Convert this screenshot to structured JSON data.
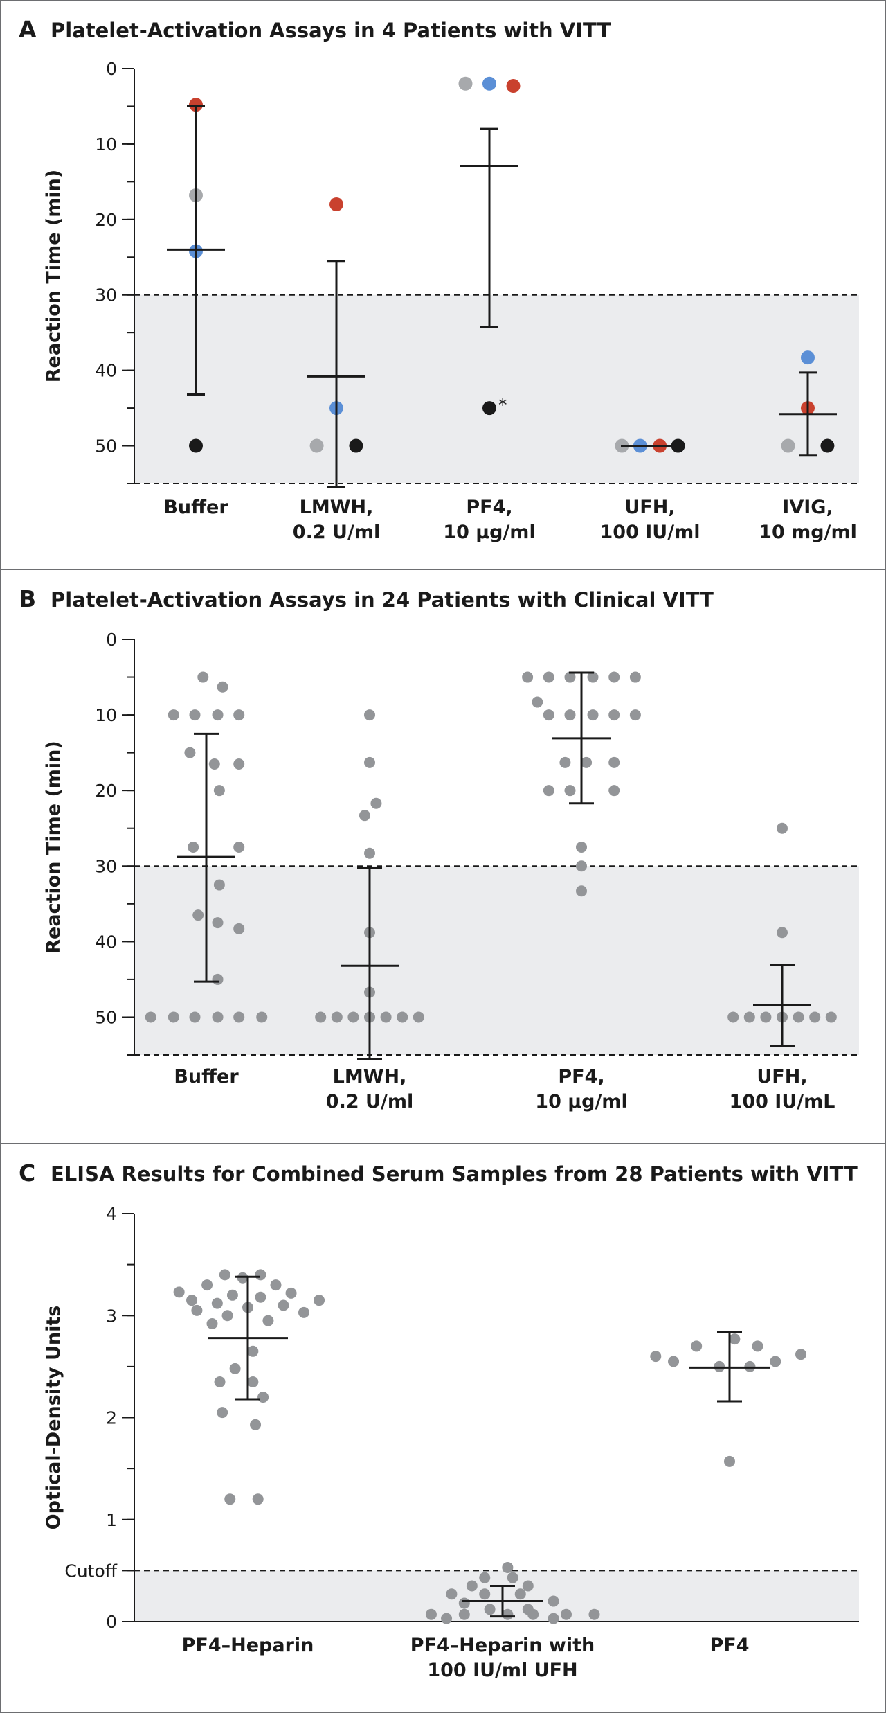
{
  "colors": {
    "gray": "#a7a9ac",
    "blue": "#5b8fd6",
    "red": "#c9412e",
    "black": "#1a1a1a",
    "dot_gray": "#939598",
    "shade": "#ebecee",
    "bar": "#1a1a1a"
  },
  "panels": [
    {
      "letter": "A",
      "title": "Platelet-Activation Assays in 4 Patients with VITT"
    },
    {
      "letter": "B",
      "title": "Platelet-Activation Assays in 24 Patients with Clinical VITT"
    },
    {
      "letter": "C",
      "title": "ELISA Results for Combined Serum Samples from 28 Patients with VITT"
    }
  ],
  "chart_data": [
    {
      "type": "scatter",
      "title": "Platelet-Activation Assays in 4 Patients with VITT",
      "ylabel": "Reaction Time (min)",
      "ylim": [
        55,
        0
      ],
      "inverted": true,
      "yticks": [
        0,
        10,
        20,
        30,
        40,
        50
      ],
      "threshold": 30,
      "shaded_region": [
        30,
        55
      ],
      "categories": [
        {
          "line1": "Buffer",
          "line2": ""
        },
        {
          "line1": "LMWH,",
          "line2": "0.2 U/ml"
        },
        {
          "line1": "PF4,",
          "line2": "10 µg/ml"
        },
        {
          "line1": "UFH,",
          "line2": "100 IU/ml"
        },
        {
          "line1": "IVIG,",
          "line2": "10 mg/ml"
        }
      ],
      "points": [
        {
          "cat": 0,
          "y": 4.8,
          "color": "red"
        },
        {
          "cat": 0,
          "y": 16.8,
          "color": "gray"
        },
        {
          "cat": 0,
          "y": 24.2,
          "color": "blue"
        },
        {
          "cat": 0,
          "y": 50,
          "color": "black"
        },
        {
          "cat": 1,
          "y": 18,
          "color": "red"
        },
        {
          "cat": 1,
          "y": 45,
          "color": "blue"
        },
        {
          "cat": 1,
          "y": 50,
          "color": "gray",
          "dx": -0.14
        },
        {
          "cat": 1,
          "y": 50,
          "color": "black",
          "dx": 0.14
        },
        {
          "cat": 2,
          "y": 2,
          "color": "gray",
          "dx": -0.17
        },
        {
          "cat": 2,
          "y": 2,
          "color": "blue",
          "dx": 0
        },
        {
          "cat": 2,
          "y": 2.3,
          "color": "red",
          "dx": 0.17
        },
        {
          "cat": 2,
          "y": 45,
          "color": "black",
          "marker": "*"
        },
        {
          "cat": 3,
          "y": 50,
          "color": "gray",
          "dx": -0.2
        },
        {
          "cat": 3,
          "y": 50,
          "color": "blue",
          "dx": -0.07
        },
        {
          "cat": 3,
          "y": 50,
          "color": "red",
          "dx": 0.07
        },
        {
          "cat": 3,
          "y": 50,
          "color": "black",
          "dx": 0.2
        },
        {
          "cat": 4,
          "y": 38.3,
          "color": "blue"
        },
        {
          "cat": 4,
          "y": 45,
          "color": "red"
        },
        {
          "cat": 4,
          "y": 50,
          "color": "gray",
          "dx": -0.14
        },
        {
          "cat": 4,
          "y": 50,
          "color": "black",
          "dx": 0.14
        }
      ],
      "summary": [
        {
          "cat": 0,
          "mean": 24,
          "low": 5,
          "high": 43.2
        },
        {
          "cat": 1,
          "mean": 40.8,
          "low": 25.5,
          "high": 55.5
        },
        {
          "cat": 2,
          "mean": 12.9,
          "low": 8,
          "high": 34.3
        },
        {
          "cat": 3,
          "mean": 50,
          "low": 50,
          "high": 50
        },
        {
          "cat": 4,
          "mean": 45.8,
          "low": 40.3,
          "high": 51.3
        }
      ]
    },
    {
      "type": "scatter",
      "title": "Platelet-Activation Assays in 24 Patients with Clinical VITT",
      "ylabel": "Reaction Time (min)",
      "ylim": [
        55,
        0
      ],
      "inverted": true,
      "yticks": [
        0,
        10,
        20,
        30,
        40,
        50
      ],
      "threshold": 30,
      "shaded_region": [
        30,
        55
      ],
      "categories": [
        {
          "line1": "Buffer",
          "line2": ""
        },
        {
          "line1": "LMWH,",
          "line2": "0.2 U/ml"
        },
        {
          "line1": "PF4,",
          "line2": "10 µg/ml"
        },
        {
          "line1": "UFH,",
          "line2": "100 IU/mL"
        }
      ],
      "points": [
        {
          "cat": 0,
          "y": 5,
          "dx": -0.02
        },
        {
          "cat": 0,
          "y": 6.3,
          "dx": 0.1
        },
        {
          "cat": 0,
          "y": 10,
          "dx": -0.2
        },
        {
          "cat": 0,
          "y": 10,
          "dx": -0.07
        },
        {
          "cat": 0,
          "y": 10,
          "dx": 0.07
        },
        {
          "cat": 0,
          "y": 10,
          "dx": 0.2
        },
        {
          "cat": 0,
          "y": 15,
          "dx": -0.1
        },
        {
          "cat": 0,
          "y": 16.5,
          "dx": 0.05
        },
        {
          "cat": 0,
          "y": 16.5,
          "dx": 0.2
        },
        {
          "cat": 0,
          "y": 20,
          "dx": 0.08
        },
        {
          "cat": 0,
          "y": 27.5,
          "dx": -0.08
        },
        {
          "cat": 0,
          "y": 27.5,
          "dx": 0.2
        },
        {
          "cat": 0,
          "y": 32.5,
          "dx": 0.08
        },
        {
          "cat": 0,
          "y": 36.5,
          "dx": -0.05
        },
        {
          "cat": 0,
          "y": 37.5,
          "dx": 0.07
        },
        {
          "cat": 0,
          "y": 38.3,
          "dx": 0.2
        },
        {
          "cat": 0,
          "y": 45,
          "dx": 0.07
        },
        {
          "cat": 0,
          "y": 50,
          "dx": -0.34
        },
        {
          "cat": 0,
          "y": 50,
          "dx": -0.2
        },
        {
          "cat": 0,
          "y": 50,
          "dx": -0.07
        },
        {
          "cat": 0,
          "y": 50,
          "dx": 0.07
        },
        {
          "cat": 0,
          "y": 50,
          "dx": 0.2
        },
        {
          "cat": 0,
          "y": 50,
          "dx": 0.34
        },
        {
          "cat": 1,
          "y": 10
        },
        {
          "cat": 1,
          "y": 16.3
        },
        {
          "cat": 1,
          "y": 21.7,
          "dx": 0.04
        },
        {
          "cat": 1,
          "y": 23.3,
          "dx": -0.03
        },
        {
          "cat": 1,
          "y": 28.3
        },
        {
          "cat": 1,
          "y": 38.8
        },
        {
          "cat": 1,
          "y": 46.7
        },
        {
          "cat": 1,
          "y": 50,
          "dx": -0.3
        },
        {
          "cat": 1,
          "y": 50,
          "dx": -0.2
        },
        {
          "cat": 1,
          "y": 50,
          "dx": -0.1
        },
        {
          "cat": 1,
          "y": 50,
          "dx": 0
        },
        {
          "cat": 1,
          "y": 50,
          "dx": 0.1
        },
        {
          "cat": 1,
          "y": 50,
          "dx": 0.2
        },
        {
          "cat": 1,
          "y": 50,
          "dx": 0.3
        },
        {
          "cat": 2,
          "y": 5,
          "dx": -0.33
        },
        {
          "cat": 2,
          "y": 5,
          "dx": -0.2
        },
        {
          "cat": 2,
          "y": 5,
          "dx": -0.07
        },
        {
          "cat": 2,
          "y": 5,
          "dx": 0.07
        },
        {
          "cat": 2,
          "y": 5,
          "dx": 0.2
        },
        {
          "cat": 2,
          "y": 5,
          "dx": 0.33
        },
        {
          "cat": 2,
          "y": 8.3,
          "dx": -0.27
        },
        {
          "cat": 2,
          "y": 10,
          "dx": -0.2
        },
        {
          "cat": 2,
          "y": 10,
          "dx": -0.07
        },
        {
          "cat": 2,
          "y": 10,
          "dx": 0.07
        },
        {
          "cat": 2,
          "y": 10,
          "dx": 0.2
        },
        {
          "cat": 2,
          "y": 10,
          "dx": 0.33
        },
        {
          "cat": 2,
          "y": 16.3,
          "dx": -0.1
        },
        {
          "cat": 2,
          "y": 16.3,
          "dx": 0.03
        },
        {
          "cat": 2,
          "y": 16.3,
          "dx": 0.2
        },
        {
          "cat": 2,
          "y": 20,
          "dx": -0.2
        },
        {
          "cat": 2,
          "y": 20,
          "dx": -0.07
        },
        {
          "cat": 2,
          "y": 20,
          "dx": 0.2
        },
        {
          "cat": 2,
          "y": 27.5
        },
        {
          "cat": 2,
          "y": 30
        },
        {
          "cat": 2,
          "y": 33.3
        },
        {
          "cat": 3,
          "y": 25
        },
        {
          "cat": 3,
          "y": 38.8
        },
        {
          "cat": 3,
          "y": 50,
          "dx": -0.3
        },
        {
          "cat": 3,
          "y": 50,
          "dx": -0.2
        },
        {
          "cat": 3,
          "y": 50,
          "dx": -0.1
        },
        {
          "cat": 3,
          "y": 50,
          "dx": 0
        },
        {
          "cat": 3,
          "y": 50,
          "dx": 0.1
        },
        {
          "cat": 3,
          "y": 50,
          "dx": 0.2
        },
        {
          "cat": 3,
          "y": 50,
          "dx": 0.3
        }
      ],
      "summary": [
        {
          "cat": 0,
          "mean": 28.8,
          "low": 12.5,
          "high": 45.3
        },
        {
          "cat": 1,
          "mean": 43.2,
          "low": 30.3,
          "high": 55.5
        },
        {
          "cat": 2,
          "mean": 13.1,
          "low": 4.4,
          "high": 21.7
        },
        {
          "cat": 3,
          "mean": 48.4,
          "low": 43.1,
          "high": 53.8
        }
      ]
    },
    {
      "type": "scatter",
      "title": "ELISA Results for Combined Serum Samples from 28 Patients with VITT",
      "ylabel": "Optical-Density Units",
      "ylim": [
        0,
        4
      ],
      "inverted": false,
      "yticks": [
        0,
        1,
        2,
        3,
        4
      ],
      "threshold": 0.5,
      "threshold_label": "Cutoff",
      "shaded_region": [
        0,
        0.5
      ],
      "categories": [
        {
          "line1": "PF4–Heparin",
          "line2": ""
        },
        {
          "line1": "PF4–Heparin with",
          "line2": "100 IU/ml UFH"
        },
        {
          "line1": "PF4",
          "line2": ""
        }
      ],
      "points": [
        {
          "cat": 0,
          "y": 3.4,
          "dx": -0.09
        },
        {
          "cat": 0,
          "y": 3.4,
          "dx": 0.05
        },
        {
          "cat": 0,
          "y": 3.37,
          "dx": -0.02
        },
        {
          "cat": 0,
          "y": 3.3,
          "dx": 0.11
        },
        {
          "cat": 0,
          "y": 3.3,
          "dx": -0.16
        },
        {
          "cat": 0,
          "y": 3.23,
          "dx": -0.27
        },
        {
          "cat": 0,
          "y": 3.22,
          "dx": 0.17
        },
        {
          "cat": 0,
          "y": 3.2,
          "dx": -0.06
        },
        {
          "cat": 0,
          "y": 3.18,
          "dx": 0.05
        },
        {
          "cat": 0,
          "y": 3.15,
          "dx": -0.22
        },
        {
          "cat": 0,
          "y": 3.15,
          "dx": 0.28
        },
        {
          "cat": 0,
          "y": 3.12,
          "dx": -0.12
        },
        {
          "cat": 0,
          "y": 3.1,
          "dx": 0.14
        },
        {
          "cat": 0,
          "y": 3.08,
          "dx": 0
        },
        {
          "cat": 0,
          "y": 3.05,
          "dx": -0.2
        },
        {
          "cat": 0,
          "y": 3.03,
          "dx": 0.22
        },
        {
          "cat": 0,
          "y": 3.0,
          "dx": -0.08
        },
        {
          "cat": 0,
          "y": 2.95,
          "dx": 0.08
        },
        {
          "cat": 0,
          "y": 2.92,
          "dx": -0.14
        },
        {
          "cat": 0,
          "y": 2.65,
          "dx": 0.02
        },
        {
          "cat": 0,
          "y": 2.48,
          "dx": -0.05
        },
        {
          "cat": 0,
          "y": 2.35,
          "dx": -0.11
        },
        {
          "cat": 0,
          "y": 2.35,
          "dx": 0.02
        },
        {
          "cat": 0,
          "y": 2.2,
          "dx": 0.06
        },
        {
          "cat": 0,
          "y": 2.05,
          "dx": -0.1
        },
        {
          "cat": 0,
          "y": 1.93,
          "dx": 0.03
        },
        {
          "cat": 0,
          "y": 1.2,
          "dx": -0.07
        },
        {
          "cat": 0,
          "y": 1.2,
          "dx": 0.04
        },
        {
          "cat": 1,
          "y": 0.53,
          "dx": 0.02
        },
        {
          "cat": 1,
          "y": 0.43,
          "dx": -0.07
        },
        {
          "cat": 1,
          "y": 0.43,
          "dx": 0.04
        },
        {
          "cat": 1,
          "y": 0.35,
          "dx": -0.12
        },
        {
          "cat": 1,
          "y": 0.35,
          "dx": 0.1
        },
        {
          "cat": 1,
          "y": 0.27,
          "dx": -0.2
        },
        {
          "cat": 1,
          "y": 0.27,
          "dx": -0.07
        },
        {
          "cat": 1,
          "y": 0.27,
          "dx": 0.07
        },
        {
          "cat": 1,
          "y": 0.2,
          "dx": 0.2
        },
        {
          "cat": 1,
          "y": 0.18,
          "dx": -0.15
        },
        {
          "cat": 1,
          "y": 0.12,
          "dx": -0.05
        },
        {
          "cat": 1,
          "y": 0.12,
          "dx": 0.1
        },
        {
          "cat": 1,
          "y": 0.07,
          "dx": -0.28
        },
        {
          "cat": 1,
          "y": 0.07,
          "dx": -0.15
        },
        {
          "cat": 1,
          "y": 0.07,
          "dx": 0.02
        },
        {
          "cat": 1,
          "y": 0.07,
          "dx": 0.12
        },
        {
          "cat": 1,
          "y": 0.07,
          "dx": 0.25
        },
        {
          "cat": 1,
          "y": 0.07,
          "dx": 0.36
        },
        {
          "cat": 1,
          "y": 0.03,
          "dx": -0.22
        },
        {
          "cat": 1,
          "y": 0.03,
          "dx": 0.2
        },
        {
          "cat": 2,
          "y": 2.77,
          "dx": 0.02
        },
        {
          "cat": 2,
          "y": 2.7,
          "dx": -0.13
        },
        {
          "cat": 2,
          "y": 2.7,
          "dx": 0.11
        },
        {
          "cat": 2,
          "y": 2.62,
          "dx": 0.28
        },
        {
          "cat": 2,
          "y": 2.6,
          "dx": -0.29
        },
        {
          "cat": 2,
          "y": 2.55,
          "dx": 0.18
        },
        {
          "cat": 2,
          "y": 2.55,
          "dx": -0.22
        },
        {
          "cat": 2,
          "y": 2.5,
          "dx": -0.04
        },
        {
          "cat": 2,
          "y": 2.5,
          "dx": 0.08
        },
        {
          "cat": 2,
          "y": 1.57,
          "dx": 0
        }
      ],
      "summary": [
        {
          "cat": 0,
          "mean": 2.78,
          "low": 2.18,
          "high": 3.38
        },
        {
          "cat": 1,
          "mean": 0.2,
          "low": 0.05,
          "high": 0.35
        },
        {
          "cat": 2,
          "mean": 2.49,
          "low": 2.16,
          "high": 2.84
        }
      ]
    }
  ]
}
